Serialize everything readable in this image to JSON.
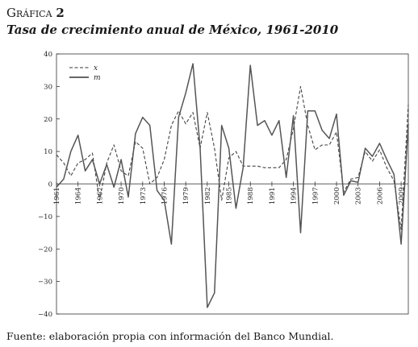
{
  "figure": {
    "label_word": "Gráfica",
    "label_number": "2",
    "title": "Tasa de crecimiento anual de México, 1961-2010",
    "source": "Fuente: elaboración propia con información del Banco Mundial."
  },
  "chart_data": {
    "type": "line",
    "title": "Tasa de crecimiento anual de México, 1961-2010",
    "xlabel": "",
    "ylabel": "",
    "ylim": [
      -40,
      40
    ],
    "xlim": [
      1961,
      2010
    ],
    "y_ticks": [
      -40,
      -30,
      -20,
      -10,
      0,
      10,
      20,
      30,
      40
    ],
    "y_tick_labels": [
      "−40",
      "−30",
      "−20",
      "−10",
      "0",
      "10",
      "20",
      "30",
      "40"
    ],
    "x_ticks": [
      1961,
      1964,
      1967,
      1970,
      1973,
      1976,
      1979,
      1982,
      1985,
      1988,
      1991,
      1994,
      1997,
      2000,
      2003,
      2006,
      2009
    ],
    "grid": false,
    "legend_position": "top-left",
    "x": [
      1961,
      1962,
      1963,
      1964,
      1965,
      1966,
      1967,
      1968,
      1969,
      1970,
      1971,
      1972,
      1973,
      1974,
      1975,
      1976,
      1977,
      1978,
      1979,
      1980,
      1981,
      1982,
      1983,
      1984,
      1985,
      1986,
      1987,
      1988,
      1989,
      1990,
      1991,
      1992,
      1993,
      1994,
      1995,
      1996,
      1997,
      1998,
      1999,
      2000,
      2001,
      2002,
      2003,
      2004,
      2005,
      2006,
      2007,
      2008,
      2009,
      2010
    ],
    "series": [
      {
        "name": "x",
        "style": "dashed",
        "values": [
          9,
          6.5,
          2.5,
          6.5,
          7.5,
          9.5,
          -5,
          6.5,
          12,
          4,
          2.5,
          13,
          11,
          0,
          2,
          7.5,
          18,
          22.5,
          18.5,
          22,
          11,
          22,
          11,
          -5,
          8,
          10,
          5.5,
          5.5,
          5.5,
          5,
          5,
          5,
          7.5,
          17,
          30,
          18,
          10.5,
          12,
          12,
          16,
          -2.5,
          1.5,
          2,
          10,
          7,
          10.5,
          5,
          1,
          -14,
          24.5
        ]
      },
      {
        "name": "m",
        "style": "solid",
        "values": [
          -1,
          1.5,
          10,
          15,
          4,
          7.5,
          0,
          6,
          -1,
          7.5,
          -4,
          15.5,
          20.5,
          18,
          -2,
          -5,
          -18.5,
          20.5,
          28,
          37,
          11,
          -38,
          -33.5,
          18,
          11,
          -7.5,
          5,
          36.5,
          18,
          19.5,
          15,
          19.5,
          2,
          21,
          -15,
          22.5,
          22.5,
          16.5,
          14,
          21.5,
          -3.5,
          1,
          0.5,
          11,
          8.5,
          12.5,
          7.5,
          3,
          -18.5,
          18.5
        ]
      }
    ]
  }
}
